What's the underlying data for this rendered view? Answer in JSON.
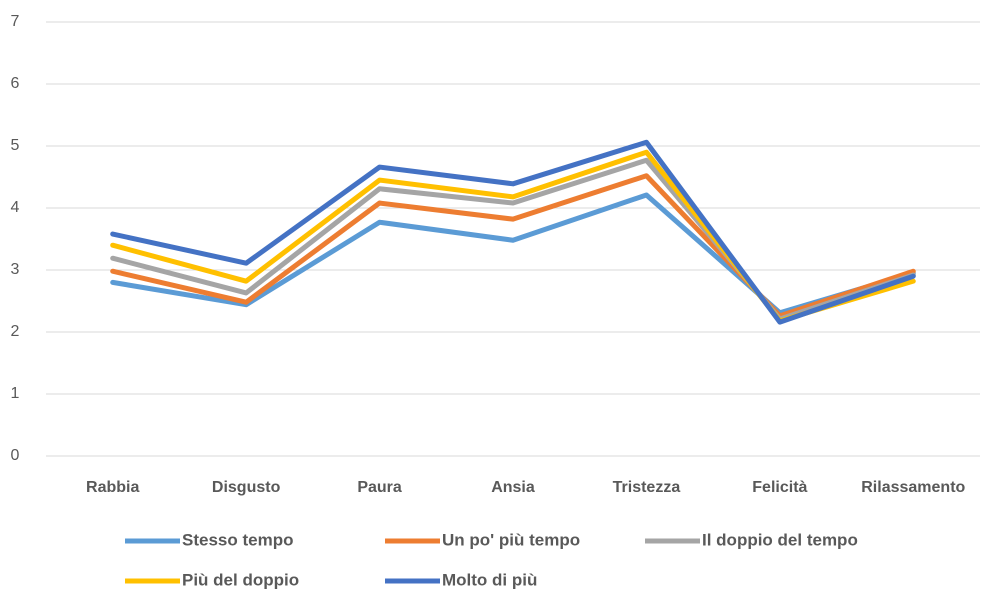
{
  "chart_data": {
    "type": "line",
    "categories": [
      "Rabbia",
      "Disgusto",
      "Paura",
      "Ansia",
      "Tristezza",
      "Felicità",
      "Rilassamento"
    ],
    "series": [
      {
        "name": "Stesso tempo",
        "color": "#5b9bd5",
        "values": [
          2.8,
          2.44,
          3.77,
          3.48,
          4.21,
          2.31,
          2.95
        ]
      },
      {
        "name": "Un po' più tempo",
        "color": "#ed7d31",
        "values": [
          2.98,
          2.48,
          4.08,
          3.82,
          4.52,
          2.26,
          2.98
        ]
      },
      {
        "name": "Il doppio del tempo",
        "color": "#a5a5a5",
        "values": [
          3.19,
          2.63,
          4.31,
          4.08,
          4.77,
          2.21,
          2.92
        ]
      },
      {
        "name": "Più del doppio",
        "color": "#ffc000",
        "values": [
          3.4,
          2.82,
          4.45,
          4.18,
          4.9,
          2.18,
          2.82
        ]
      },
      {
        "name": "Molto di più",
        "color": "#4472c4",
        "values": [
          3.58,
          3.11,
          4.66,
          4.39,
          5.06,
          2.16,
          2.9
        ]
      }
    ],
    "ylim": [
      0,
      7
    ],
    "yticks": [
      0,
      1,
      2,
      3,
      4,
      5,
      6,
      7
    ],
    "grid": true,
    "legend": "bottom"
  }
}
